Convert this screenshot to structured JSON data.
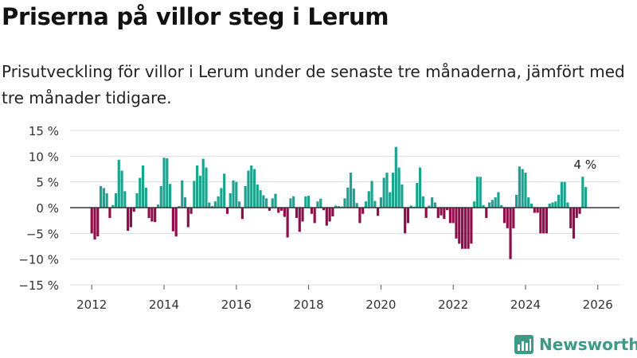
{
  "title": "Priserna på villor steg i Lerum",
  "subtitle": "Prisutveckling för villor i Lerum under de senaste tre månaderna, jämfört med tre månader tidigare.",
  "brand": "Newsworthy",
  "colors": {
    "positive": "#1ba390",
    "negative": "#8f0d4a",
    "grid": "#dddddd",
    "axis": "#333333",
    "brand": "#3d9a87"
  },
  "chart_data": {
    "type": "bar",
    "xlabel": "",
    "ylabel": "",
    "ylim": [
      -15,
      15
    ],
    "xlim": [
      2011.4,
      2026.6
    ],
    "yticks": [
      {
        "value": 15,
        "label": "15 %"
      },
      {
        "value": 10,
        "label": "10 %"
      },
      {
        "value": 5,
        "label": "5 %"
      },
      {
        "value": 0,
        "label": "0 %"
      },
      {
        "value": -5,
        "label": "−5 %"
      },
      {
        "value": -10,
        "label": "−10 %"
      },
      {
        "value": -15,
        "label": "−15 %"
      }
    ],
    "xticks": [
      {
        "value": 2012,
        "label": "2012"
      },
      {
        "value": 2014,
        "label": "2014"
      },
      {
        "value": 2016,
        "label": "2016"
      },
      {
        "value": 2018,
        "label": "2018"
      },
      {
        "value": 2020,
        "label": "2020"
      },
      {
        "value": 2022,
        "label": "2022"
      },
      {
        "value": 2024,
        "label": "2024"
      },
      {
        "value": 2026,
        "label": "2026"
      }
    ],
    "start": 2012,
    "step": 0.0833333,
    "values": [
      -5,
      -6.2,
      -5.6,
      4.2,
      3.8,
      2.8,
      -2,
      0.5,
      2.8,
      9.3,
      7.2,
      3.2,
      -4.5,
      -3.8,
      -0.8,
      2.8,
      5.8,
      8.2,
      3.9,
      -2,
      -2.7,
      -2.8,
      0.6,
      4.2,
      9.7,
      9.6,
      4.6,
      -4.6,
      -5.6,
      0.3,
      5.3,
      2,
      -3.8,
      -1.2,
      5.2,
      8.2,
      6.2,
      9.5,
      7.8,
      1,
      0.3,
      1.2,
      2.2,
      3.8,
      6.6,
      -1.2,
      2.8,
      5.3,
      5,
      1.2,
      -2.2,
      4.2,
      7.2,
      8.2,
      7.5,
      4.5,
      3.4,
      2.4,
      1.8,
      -0.6,
      1.8,
      2.7,
      -1,
      -0.6,
      -1.8,
      -5.8,
      1.8,
      2.2,
      -2,
      -4.7,
      -2.7,
      2.2,
      2.3,
      -1.2,
      -3,
      1.2,
      1.7,
      -0.5,
      -3.5,
      -2.7,
      -1.7,
      0.4,
      0.3,
      0.2,
      1.8,
      3.9,
      6.8,
      3.7,
      0.9,
      -3,
      -1.2,
      1.2,
      3.2,
      5.2,
      1.3,
      -1.6,
      2,
      5.8,
      6.8,
      3,
      6.8,
      11.8,
      7.8,
      4.5,
      -5,
      -3,
      0.4,
      0.2,
      4.8,
      7.8,
      2.2,
      -2,
      0.4,
      2,
      1,
      -2,
      -1.5,
      -2.2,
      -0.5,
      -3,
      -3,
      -6,
      -7,
      -8,
      -8,
      -8,
      -7,
      1.2,
      6,
      6,
      0.5,
      -2,
      1,
      1.5,
      2,
      3,
      0.5,
      -3,
      -4,
      -10,
      -4,
      2.5,
      8,
      7.5,
      6.8,
      2,
      0.8,
      -1,
      -1,
      -5,
      -5,
      -5,
      0.8,
      1,
      1.2,
      2.5,
      5,
      5,
      1,
      -4,
      -6,
      -2,
      -1.2,
      6,
      4
    ],
    "annotations": [
      {
        "label": "4 %"
      }
    ]
  }
}
